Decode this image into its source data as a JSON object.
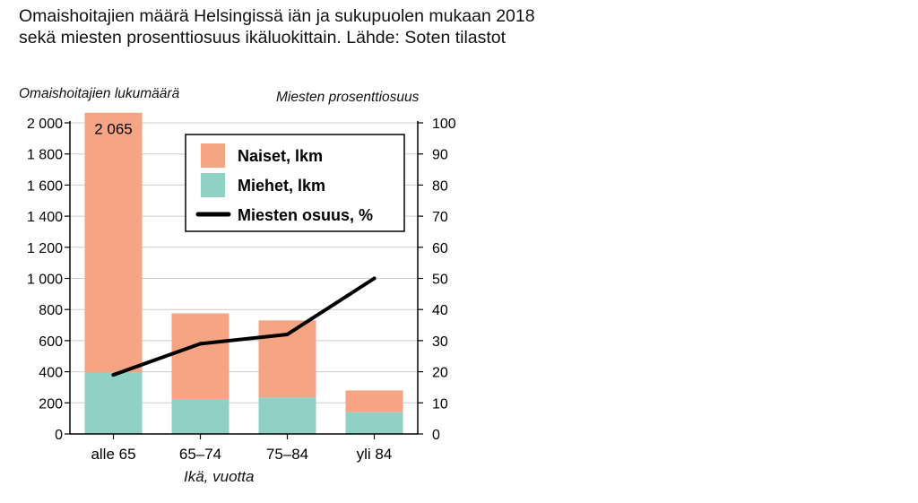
{
  "title_lines": [
    "Omaishoitajien määrä Helsingissä iän ja sukupuolen mukaan 2018",
    "sekä miesten prosenttiosuus ikäluokittain. Lähde: Soten tilastot"
  ],
  "colors": {
    "women": "#f5a584",
    "men": "#8fd1c4",
    "line": "#000000",
    "grid": "#cccccc",
    "axis": "#000000"
  },
  "chart_data": {
    "type": "bar",
    "stacked": true,
    "categories": [
      "alle 65",
      "65–74",
      "75–84",
      "yli 84"
    ],
    "series": [
      {
        "name": "Miehet, lkm",
        "color": "#8fd1c4",
        "values": [
          395,
          225,
          235,
          140
        ]
      },
      {
        "name": "Naiset, lkm",
        "color": "#f5a584",
        "values": [
          1670,
          550,
          495,
          140
        ]
      }
    ],
    "line_series": {
      "name": "Miesten osuus, %",
      "axis": "right",
      "values": [
        19,
        29,
        32,
        50
      ]
    },
    "data_labels": [
      {
        "category": "alle 65",
        "text": "2 065"
      }
    ],
    "ylabel": "Omaishoitajien lukumäärä",
    "ylabel_right": "Miesten prosenttiosuus",
    "xlabel": "Ikä, vuotta",
    "ylim": [
      0,
      2000
    ],
    "ylim_right": [
      0,
      100
    ],
    "yticks": [
      0,
      200,
      400,
      600,
      800,
      1000,
      1200,
      1400,
      1600,
      1800,
      2000
    ],
    "yticks_labels": [
      "0",
      "200",
      "400",
      "600",
      "800",
      "1 000",
      "1 200",
      "1 400",
      "1 600",
      "1 800",
      "2 000"
    ],
    "yticks_right": [
      0,
      10,
      20,
      30,
      40,
      50,
      60,
      70,
      80,
      90,
      100
    ],
    "legend": {
      "placement": "top-center",
      "items": [
        {
          "label": "Naiset, lkm",
          "kind": "box",
          "color": "#f5a584"
        },
        {
          "label": "Miehet, lkm",
          "kind": "box",
          "color": "#8fd1c4"
        },
        {
          "label": "Miesten osuus, %",
          "kind": "line",
          "color": "#000000"
        }
      ]
    },
    "grid": true
  }
}
